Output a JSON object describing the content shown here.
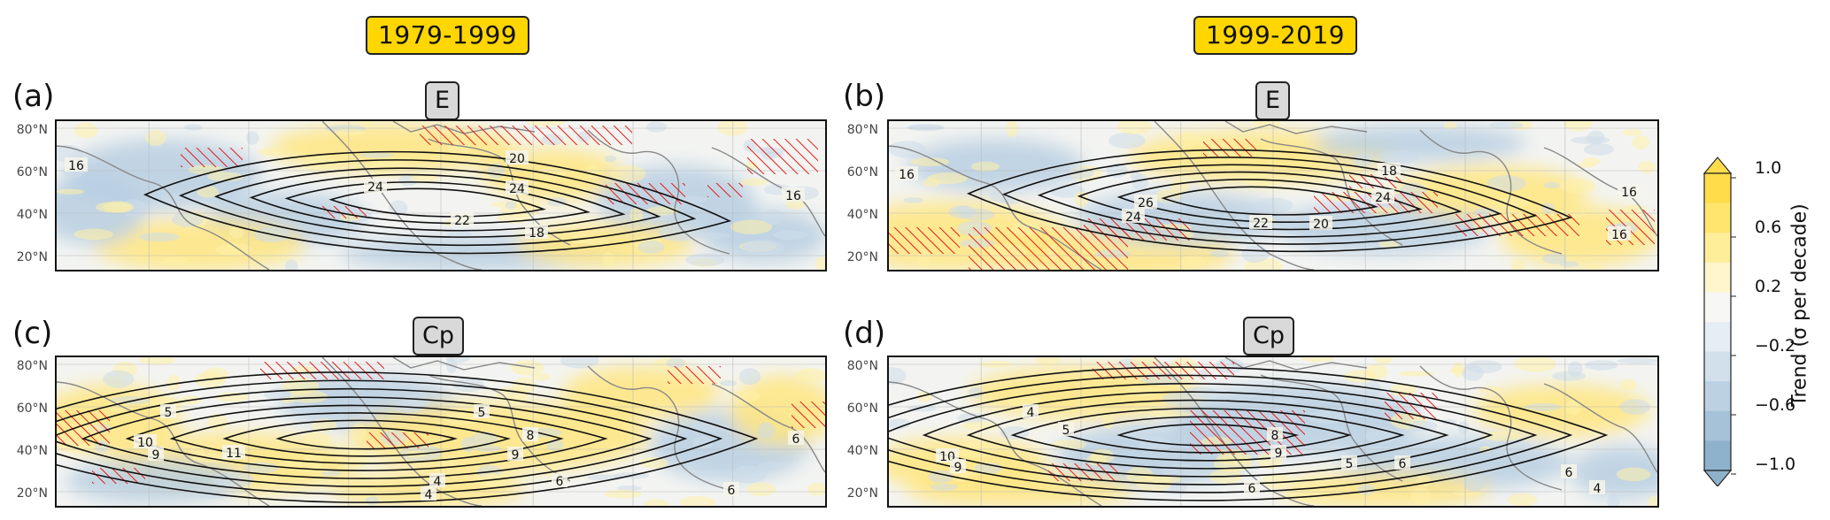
{
  "chart_data": {
    "type": "map",
    "colors": {
      "positive": "#ffd64a",
      "negative": "#7ea7c9",
      "hatch": "#e11b1b",
      "contour": "#111111",
      "coast": "#888888"
    },
    "columns": [
      "1979-1999",
      "1999-2019"
    ],
    "latitude_ticks": [
      "80°N",
      "60°N",
      "40°N",
      "20°N"
    ],
    "panels": [
      {
        "id": "a",
        "letter": "(a)",
        "variable": "E",
        "period": "1979-1999",
        "contour_labels": [
          "16",
          "24",
          "24",
          "20",
          "22",
          "18",
          "16"
        ]
      },
      {
        "id": "b",
        "letter": "(b)",
        "variable": "E",
        "period": "1999-2019",
        "contour_labels": [
          "16",
          "18",
          "26",
          "24",
          "22",
          "20",
          "24",
          "16",
          "16"
        ]
      },
      {
        "id": "c",
        "letter": "(c)",
        "variable": "Cp",
        "period": "1979-1999",
        "contour_labels": [
          "5",
          "10",
          "9",
          "11",
          "4",
          "8",
          "9",
          "5",
          "4",
          "6",
          "6",
          "6"
        ]
      },
      {
        "id": "d",
        "letter": "(d)",
        "variable": "Cp",
        "period": "1999-2019",
        "contour_labels": [
          "4",
          "5",
          "10",
          "9",
          "8",
          "9",
          "6",
          "5",
          "6",
          "6",
          "4"
        ]
      }
    ],
    "colorbar": {
      "label": "Trend (σ per decade)",
      "range": [
        -1.0,
        1.0
      ],
      "tick_labels": [
        "1.0",
        "0.6",
        "0.2",
        "−0.2",
        "−0.6",
        "−1.0"
      ],
      "tick_values": [
        1.0,
        0.6,
        0.2,
        -0.2,
        -0.6,
        -1.0
      ],
      "levels": [
        -1.0,
        -0.8,
        -0.6,
        -0.4,
        -0.2,
        0.0,
        0.2,
        0.4,
        0.6,
        0.8,
        1.0
      ],
      "colors": [
        "#8fb2cc",
        "#a6c2d8",
        "#bcd2e3",
        "#d2e0ec",
        "#e6eef5",
        "#f7f7f5",
        "#fff6cc",
        "#ffee99",
        "#ffe56e",
        "#ffdc4a"
      ]
    }
  }
}
